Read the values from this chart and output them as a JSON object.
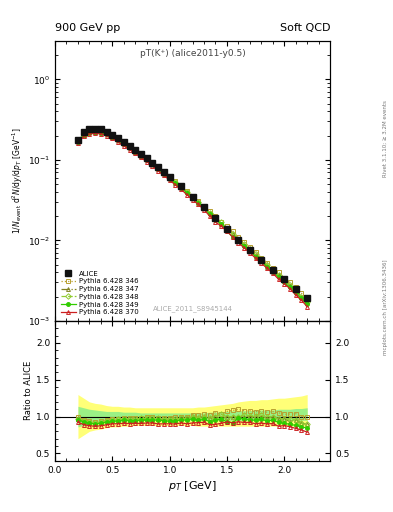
{
  "title_top": "900 GeV pp",
  "title_right": "Soft QCD",
  "subtitle": "pT(K⁺) (alice2011-y0.5)",
  "watermark": "ALICE_2011_S8945144",
  "right_label_top": "Rivet 3.1.10; ≥ 3.2M events",
  "right_label_bot": "mcplots.cern.ch [arXiv:1306.3436]",
  "xlabel": "p_T [GeV]",
  "ylabel_main": "1/N_{event} d^2N/dy/dp_T [GeV^{-1}]",
  "ylabel_ratio": "Ratio to ALICE",
  "ylim_main": [
    0.001,
    3.0
  ],
  "ylim_ratio": [
    0.4,
    2.3
  ],
  "xlim": [
    0.0,
    2.4
  ],
  "alice_x": [
    0.2,
    0.25,
    0.3,
    0.35,
    0.4,
    0.45,
    0.5,
    0.55,
    0.6,
    0.65,
    0.7,
    0.75,
    0.8,
    0.85,
    0.9,
    0.95,
    1.0,
    1.1,
    1.2,
    1.3,
    1.4,
    1.5,
    1.6,
    1.7,
    1.8,
    1.9,
    2.0,
    2.1,
    2.2
  ],
  "alice_y": [
    0.175,
    0.22,
    0.24,
    0.245,
    0.24,
    0.225,
    0.205,
    0.185,
    0.165,
    0.148,
    0.132,
    0.118,
    0.104,
    0.092,
    0.081,
    0.071,
    0.062,
    0.047,
    0.035,
    0.026,
    0.019,
    0.014,
    0.01,
    0.0076,
    0.0057,
    0.0043,
    0.0033,
    0.0025,
    0.0019
  ],
  "alice_color": "#111111",
  "pythia_x": [
    0.2,
    0.25,
    0.3,
    0.35,
    0.4,
    0.45,
    0.5,
    0.55,
    0.6,
    0.65,
    0.7,
    0.75,
    0.8,
    0.85,
    0.9,
    0.95,
    1.0,
    1.05,
    1.1,
    1.15,
    1.2,
    1.25,
    1.3,
    1.35,
    1.4,
    1.45,
    1.5,
    1.55,
    1.6,
    1.65,
    1.7,
    1.75,
    1.8,
    1.85,
    1.9,
    1.95,
    2.0,
    2.05,
    2.1,
    2.15,
    2.2
  ],
  "p346_y": [
    0.175,
    0.21,
    0.225,
    0.228,
    0.225,
    0.215,
    0.198,
    0.18,
    0.162,
    0.145,
    0.13,
    0.116,
    0.103,
    0.091,
    0.08,
    0.07,
    0.061,
    0.054,
    0.047,
    0.041,
    0.036,
    0.031,
    0.027,
    0.023,
    0.02,
    0.017,
    0.015,
    0.013,
    0.011,
    0.0095,
    0.0082,
    0.0071,
    0.0061,
    0.0053,
    0.0046,
    0.004,
    0.0034,
    0.003,
    0.0026,
    0.0022,
    0.0019
  ],
  "p347_y": [
    0.17,
    0.205,
    0.22,
    0.222,
    0.219,
    0.209,
    0.193,
    0.175,
    0.158,
    0.141,
    0.126,
    0.113,
    0.1,
    0.088,
    0.078,
    0.068,
    0.059,
    0.052,
    0.046,
    0.04,
    0.035,
    0.03,
    0.026,
    0.022,
    0.019,
    0.016,
    0.014,
    0.012,
    0.01,
    0.0088,
    0.0076,
    0.0066,
    0.0057,
    0.0049,
    0.0043,
    0.0037,
    0.0032,
    0.0027,
    0.0024,
    0.002,
    0.0017
  ],
  "p348_y": [
    0.17,
    0.208,
    0.222,
    0.225,
    0.222,
    0.212,
    0.196,
    0.178,
    0.16,
    0.143,
    0.128,
    0.115,
    0.102,
    0.09,
    0.079,
    0.069,
    0.06,
    0.053,
    0.046,
    0.04,
    0.035,
    0.03,
    0.026,
    0.022,
    0.019,
    0.017,
    0.014,
    0.012,
    0.01,
    0.009,
    0.0077,
    0.0067,
    0.0058,
    0.005,
    0.0043,
    0.0037,
    0.0032,
    0.0028,
    0.0024,
    0.002,
    0.0017
  ],
  "p349_y": [
    0.168,
    0.204,
    0.218,
    0.221,
    0.218,
    0.208,
    0.192,
    0.174,
    0.157,
    0.14,
    0.125,
    0.112,
    0.099,
    0.088,
    0.077,
    0.067,
    0.058,
    0.051,
    0.045,
    0.039,
    0.034,
    0.029,
    0.025,
    0.021,
    0.018,
    0.016,
    0.013,
    0.011,
    0.0098,
    0.0085,
    0.0073,
    0.0063,
    0.0055,
    0.0047,
    0.0041,
    0.0035,
    0.003,
    0.0026,
    0.0022,
    0.0019,
    0.0016
  ],
  "p370_y": [
    0.162,
    0.196,
    0.21,
    0.213,
    0.21,
    0.2,
    0.185,
    0.167,
    0.15,
    0.134,
    0.12,
    0.107,
    0.095,
    0.084,
    0.073,
    0.064,
    0.056,
    0.049,
    0.043,
    0.037,
    0.032,
    0.028,
    0.024,
    0.02,
    0.017,
    0.015,
    0.013,
    0.011,
    0.0093,
    0.0081,
    0.007,
    0.006,
    0.0052,
    0.0045,
    0.0039,
    0.0033,
    0.0029,
    0.0025,
    0.0021,
    0.0018,
    0.0015
  ],
  "p346_color": "#b8a030",
  "p347_color": "#808020",
  "p348_color": "#90cc30",
  "p349_color": "#30cc00",
  "p370_color": "#cc2020",
  "band_yellow_upper": [
    1.3,
    1.25,
    1.2,
    1.18,
    1.17,
    1.15,
    1.14,
    1.14,
    1.13,
    1.13,
    1.12,
    1.12,
    1.12,
    1.12,
    1.12,
    1.12,
    1.12,
    1.12,
    1.12,
    1.12,
    1.12,
    1.13,
    1.13,
    1.14,
    1.15,
    1.16,
    1.17,
    1.18,
    1.2,
    1.21,
    1.22,
    1.22,
    1.23,
    1.23,
    1.24,
    1.25,
    1.25,
    1.26,
    1.27,
    1.28,
    1.3
  ],
  "band_yellow_lower": [
    0.7,
    0.75,
    0.8,
    0.82,
    0.83,
    0.85,
    0.86,
    0.86,
    0.87,
    0.87,
    0.88,
    0.88,
    0.88,
    0.88,
    0.88,
    0.88,
    0.88,
    0.88,
    0.88,
    0.88,
    0.88,
    0.87,
    0.87,
    0.87,
    0.87,
    0.87,
    0.87,
    0.87,
    0.87,
    0.87,
    0.87,
    0.87,
    0.87,
    0.87,
    0.87,
    0.87,
    0.87,
    0.87,
    0.87,
    0.87,
    0.87
  ],
  "band_green_upper": [
    1.14,
    1.12,
    1.1,
    1.09,
    1.08,
    1.07,
    1.07,
    1.07,
    1.06,
    1.06,
    1.06,
    1.05,
    1.05,
    1.05,
    1.05,
    1.05,
    1.05,
    1.05,
    1.05,
    1.05,
    1.05,
    1.05,
    1.05,
    1.06,
    1.06,
    1.07,
    1.07,
    1.08,
    1.08,
    1.08,
    1.08,
    1.09,
    1.09,
    1.09,
    1.09,
    1.1,
    1.1,
    1.1,
    1.11,
    1.11,
    1.12
  ],
  "band_green_lower": [
    0.86,
    0.88,
    0.9,
    0.91,
    0.92,
    0.93,
    0.93,
    0.93,
    0.94,
    0.94,
    0.94,
    0.95,
    0.95,
    0.95,
    0.95,
    0.95,
    0.95,
    0.95,
    0.95,
    0.95,
    0.95,
    0.95,
    0.95,
    0.95,
    0.95,
    0.95,
    0.95,
    0.95,
    0.95,
    0.95,
    0.95,
    0.95,
    0.95,
    0.95,
    0.95,
    0.95,
    0.95,
    0.95,
    0.95,
    0.95,
    0.95
  ]
}
